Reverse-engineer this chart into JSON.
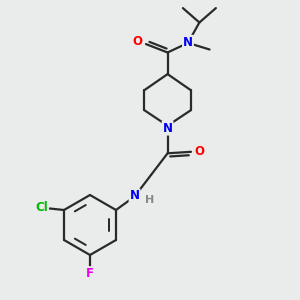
{
  "bg_color": "#eaecec",
  "atom_colors": {
    "O": "#ff0000",
    "N": "#0000ee",
    "Cl": "#00bb00",
    "F": "#ee00ee",
    "C": "#2a2a2a",
    "H": "#888888"
  },
  "bond_color": "#2a2a2a",
  "bond_width": 1.6
}
